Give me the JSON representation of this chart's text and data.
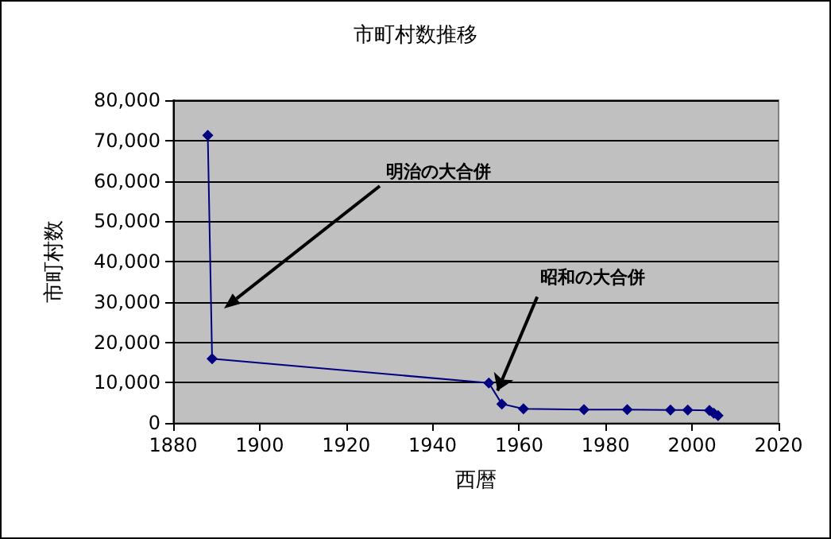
{
  "chart_data": {
    "type": "line",
    "title": "市町村数推移",
    "xlabel": "西暦",
    "ylabel": "市町村数",
    "x": [
      1888,
      1889,
      1953,
      1956,
      1961,
      1975,
      1985,
      1995,
      1999,
      2004,
      2005,
      2006
    ],
    "series": [
      {
        "color": "#000080",
        "values": [
          71300,
          15900,
          9900,
          4700,
          3500,
          3300,
          3300,
          3200,
          3200,
          3100,
          2400,
          1800
        ]
      }
    ],
    "xlim": [
      1880,
      2020
    ],
    "xticks": [
      1880,
      1900,
      1920,
      1940,
      1960,
      1980,
      2000,
      2020
    ],
    "ylim": [
      0,
      80000
    ],
    "yticks": [
      0,
      {
        "value": 10000,
        "label": "10,000"
      },
      {
        "value": 20000,
        "label": "20,000"
      },
      {
        "value": 30000,
        "label": "30,000"
      },
      {
        "value": 40000,
        "label": "40,000"
      },
      {
        "value": 50000,
        "label": "50,000"
      },
      {
        "value": 60000,
        "label": "60,000"
      },
      {
        "value": 70000,
        "label": "70,000"
      },
      {
        "value": 80000,
        "label": "80,000"
      }
    ],
    "annotations": [
      "明治の大合併",
      {
        "text": "昭和の大合併",
        "x": 1955,
        "y": 8000
      }
    ],
    "grid": "y",
    "marker": "diamond",
    "line_style": "solid"
  }
}
